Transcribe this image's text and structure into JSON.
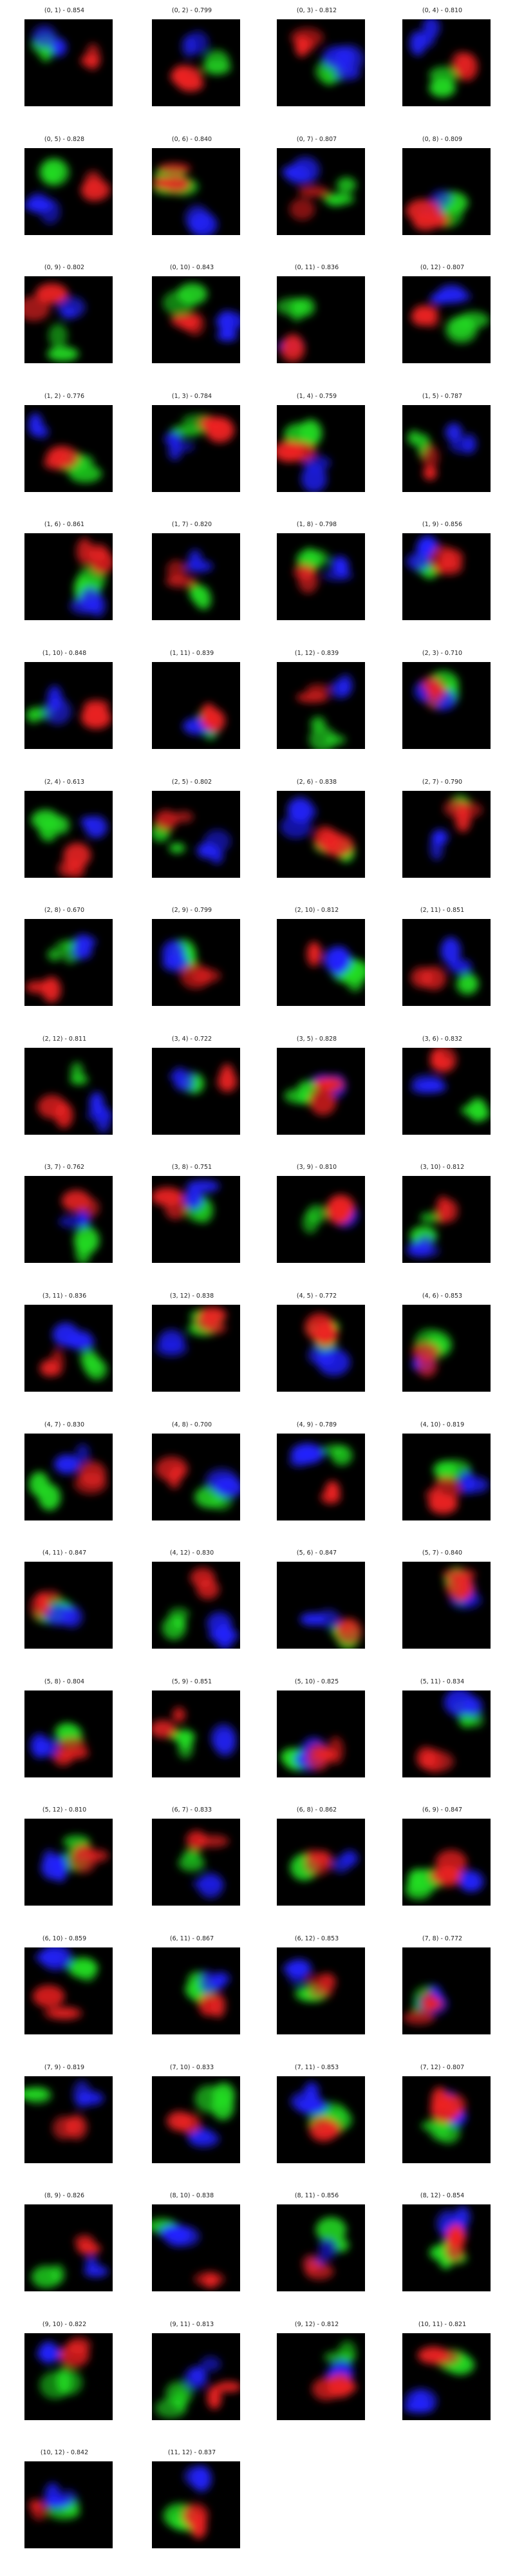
{
  "grid": {
    "columns": 4,
    "rows": 20,
    "image_colors": {
      "background": "#000000",
      "channel_1": "#22dd22",
      "channel_2": "#2222ff",
      "channel_3": "#ee2222"
    },
    "panels": [
      {
        "title": "(0, 1) - 0.854"
      },
      {
        "title": "(0, 2) - 0.799"
      },
      {
        "title": "(0, 3) - 0.812"
      },
      {
        "title": "(0, 4) - 0.810"
      },
      {
        "title": "(0, 5) - 0.828"
      },
      {
        "title": "(0, 6) - 0.840"
      },
      {
        "title": "(0, 7) - 0.807"
      },
      {
        "title": "(0, 8) - 0.809"
      },
      {
        "title": "(0, 9) - 0.802"
      },
      {
        "title": "(0, 10) - 0.843"
      },
      {
        "title": "(0, 11) - 0.836"
      },
      {
        "title": "(0, 12) - 0.807"
      },
      {
        "title": "(1, 2) - 0.776"
      },
      {
        "title": "(1, 3) - 0.784"
      },
      {
        "title": "(1, 4) - 0.759"
      },
      {
        "title": "(1, 5) - 0.787"
      },
      {
        "title": "(1, 6) - 0.861"
      },
      {
        "title": "(1, 7) - 0.820"
      },
      {
        "title": "(1, 8) - 0.798"
      },
      {
        "title": "(1, 9) - 0.856"
      },
      {
        "title": "(1, 10) - 0.848"
      },
      {
        "title": "(1, 11) - 0.839"
      },
      {
        "title": "(1, 12) - 0.839"
      },
      {
        "title": "(2, 3) - 0.710"
      },
      {
        "title": "(2, 4) - 0.613"
      },
      {
        "title": "(2, 5) - 0.802"
      },
      {
        "title": "(2, 6) - 0.838"
      },
      {
        "title": "(2, 7) - 0.790"
      },
      {
        "title": "(2, 8) - 0.670"
      },
      {
        "title": "(2, 9) - 0.799"
      },
      {
        "title": "(2, 10) - 0.812"
      },
      {
        "title": "(2, 11) - 0.851"
      },
      {
        "title": "(2, 12) - 0.811"
      },
      {
        "title": "(3, 4) - 0.722"
      },
      {
        "title": "(3, 5) - 0.828"
      },
      {
        "title": "(3, 6) - 0.832"
      },
      {
        "title": "(3, 7) - 0.762"
      },
      {
        "title": "(3, 8) - 0.751"
      },
      {
        "title": "(3, 9) - 0.810"
      },
      {
        "title": "(3, 10) - 0.812"
      },
      {
        "title": "(3, 11) - 0.836"
      },
      {
        "title": "(3, 12) - 0.838"
      },
      {
        "title": "(4, 5) - 0.772"
      },
      {
        "title": "(4, 6) - 0.853"
      },
      {
        "title": "(4, 7) - 0.830"
      },
      {
        "title": "(4, 8) - 0.700"
      },
      {
        "title": "(4, 9) - 0.789"
      },
      {
        "title": "(4, 10) - 0.819"
      },
      {
        "title": "(4, 11) - 0.847"
      },
      {
        "title": "(4, 12) - 0.830"
      },
      {
        "title": "(5, 6) - 0.847"
      },
      {
        "title": "(5, 7) - 0.840"
      },
      {
        "title": "(5, 8) - 0.804"
      },
      {
        "title": "(5, 9) - 0.851"
      },
      {
        "title": "(5, 10) - 0.825"
      },
      {
        "title": "(5, 11) - 0.834"
      },
      {
        "title": "(5, 12) - 0.810"
      },
      {
        "title": "(6, 7) - 0.833"
      },
      {
        "title": "(6, 8) - 0.862"
      },
      {
        "title": "(6, 9) - 0.847"
      },
      {
        "title": "(6, 10) - 0.859"
      },
      {
        "title": "(6, 11) - 0.867"
      },
      {
        "title": "(6, 12) - 0.853"
      },
      {
        "title": "(7, 8) - 0.772"
      },
      {
        "title": "(7, 9) - 0.819"
      },
      {
        "title": "(7, 10) - 0.833"
      },
      {
        "title": "(7, 11) - 0.853"
      },
      {
        "title": "(7, 12) - 0.807"
      },
      {
        "title": "(8, 9) - 0.826"
      },
      {
        "title": "(8, 10) - 0.838"
      },
      {
        "title": "(8, 11) - 0.856"
      },
      {
        "title": "(8, 12) - 0.854"
      },
      {
        "title": "(9, 10) - 0.822"
      },
      {
        "title": "(9, 11) - 0.813"
      },
      {
        "title": "(9, 12) - 0.812"
      },
      {
        "title": "(10, 11) - 0.821"
      },
      {
        "title": "(10, 12) - 0.842"
      },
      {
        "title": "(11, 12) - 0.837"
      }
    ]
  }
}
